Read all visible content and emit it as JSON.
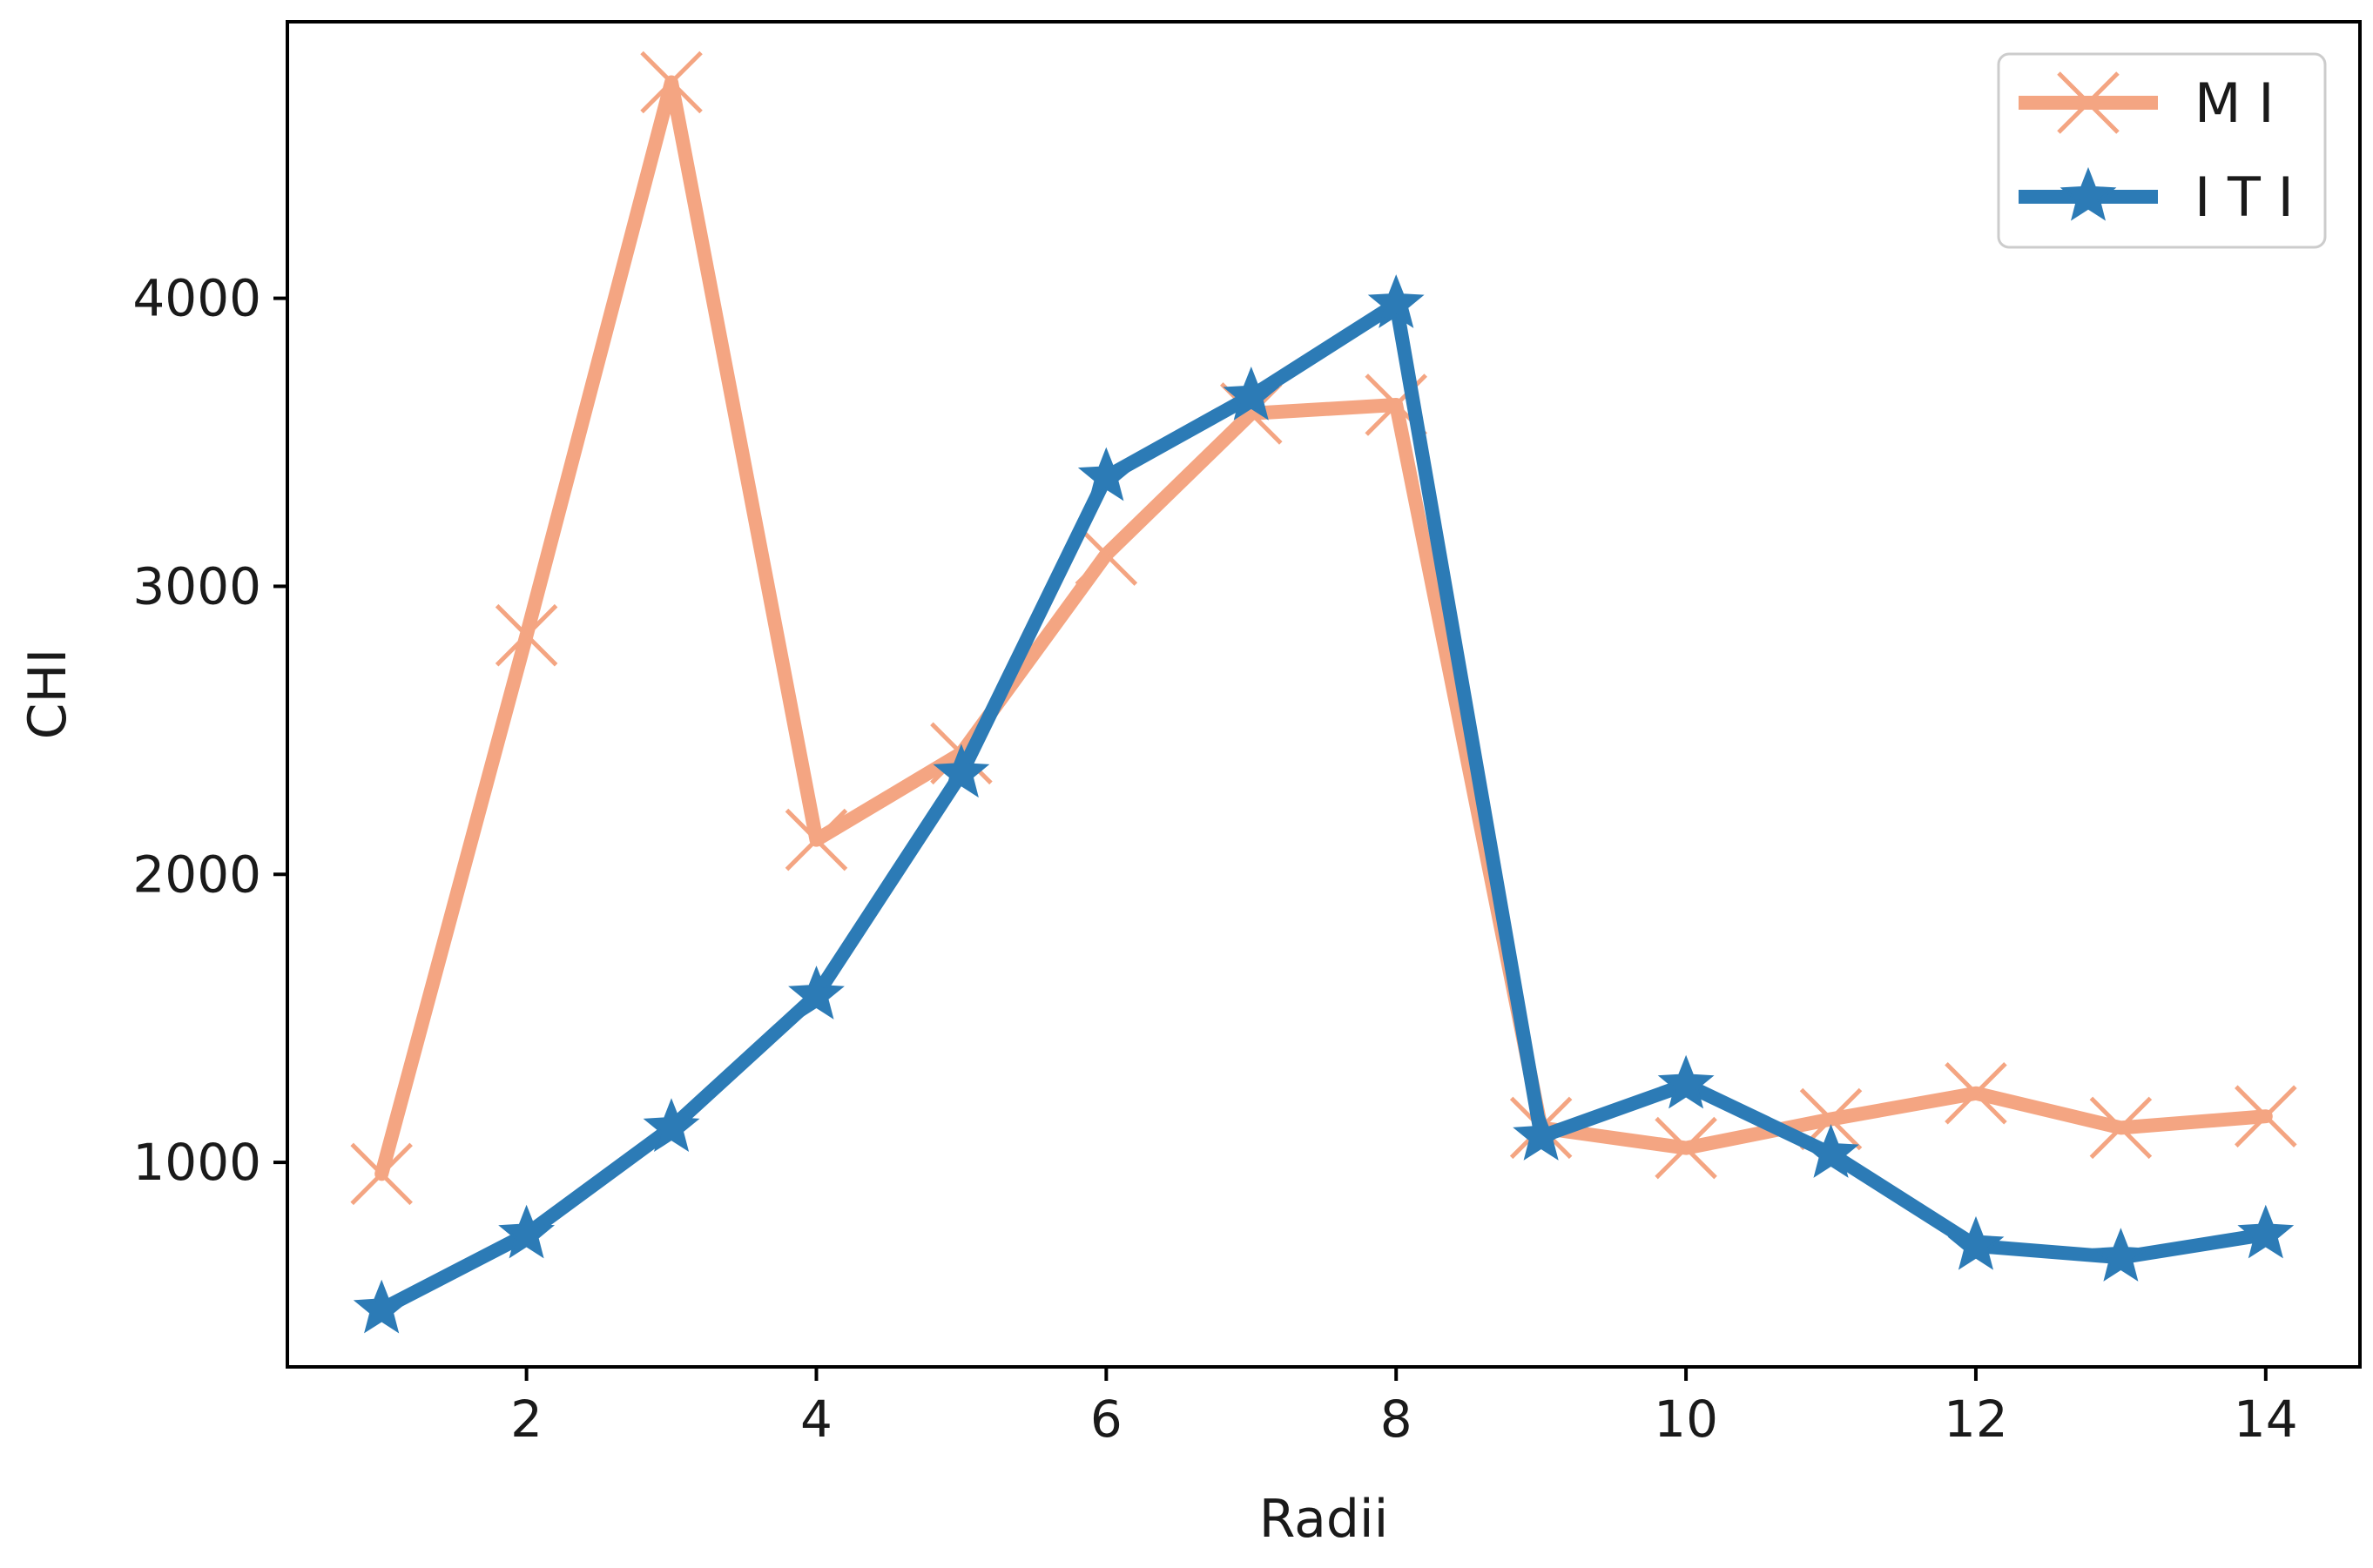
{
  "chart_data": {
    "type": "line",
    "title": "",
    "xlabel": "Radii",
    "ylabel": "CHI",
    "x": [
      1,
      2,
      3,
      4,
      5,
      6,
      7,
      8,
      9,
      10,
      11,
      12,
      13,
      14
    ],
    "xlim": [
      0.35,
      14.65
    ],
    "ylim": [
      290,
      4960
    ],
    "xticks": [
      2,
      4,
      6,
      8,
      10,
      12,
      14
    ],
    "yticks": [
      1000,
      2000,
      3000,
      4000
    ],
    "grid": false,
    "legend_position": "top-right",
    "series": [
      {
        "name": "M I",
        "color": "#f4a582",
        "marker": "x",
        "values": [
          960,
          2830,
          4750,
          2120,
          2420,
          3110,
          3600,
          3630,
          1120,
          1050,
          1150,
          1240,
          1120,
          1160
        ]
      },
      {
        "name": "I T I",
        "color": "#2c7bb6",
        "marker": "star",
        "values": [
          490,
          750,
          1120,
          1580,
          2350,
          3380,
          3660,
          3980,
          1090,
          1270,
          1030,
          710,
          670,
          750
        ]
      }
    ]
  }
}
